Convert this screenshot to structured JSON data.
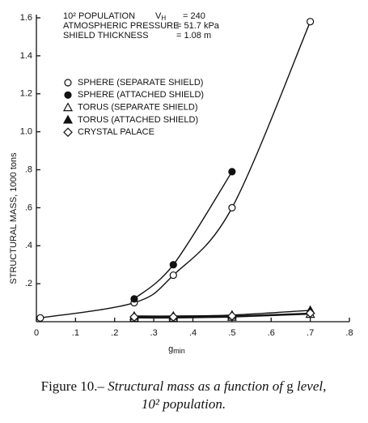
{
  "chart_data": {
    "type": "line",
    "x_label": {
      "text": "g",
      "sub": "min"
    },
    "y_label": "STRUCTURAL MASS, 1000 tons",
    "xlim": [
      0,
      0.8
    ],
    "ylim": [
      0,
      1.6
    ],
    "xticks": [
      0,
      {
        "value": 0.1,
        "label": ".1"
      },
      {
        "value": 0.2,
        "label": ".2"
      },
      {
        "value": 0.3,
        "label": ".3"
      },
      {
        "value": 0.4,
        "label": ".4"
      },
      {
        "value": 0.5,
        "label": ".5"
      },
      {
        "value": 0.6,
        "label": ".6"
      },
      {
        "value": 0.7,
        "label": ".7"
      },
      {
        "value": 0.8,
        "label": ".8"
      }
    ],
    "yticks": [
      {
        "value": 0.2,
        "label": ".2"
      },
      {
        "value": 0.4,
        "label": ".4"
      },
      {
        "value": 0.6,
        "label": ".6"
      },
      {
        "value": 0.8,
        "label": ".8"
      },
      {
        "value": 1.0,
        "label": "1.0"
      },
      1.2,
      1.4,
      1.6
    ],
    "annotations": [
      {
        "label": "10² POPULATION",
        "key": "V",
        "key_sub": "H",
        "value": "= 240"
      },
      {
        "label": "ATMOSPHERIC PRESSURE",
        "value": "= 51.7 kPa"
      },
      {
        "label": "SHIELD THICKNESS",
        "value": "= 1.08 m"
      }
    ],
    "series": [
      {
        "name": "SPHERE (SEPARATE SHIELD)",
        "marker": "circle-open",
        "color": "#111111",
        "x": [
          0.01,
          0.25,
          0.35,
          0.5,
          0.7
        ],
        "values": [
          0.02,
          0.1,
          0.245,
          0.6,
          1.58
        ]
      },
      {
        "name": "SPHERE (ATTACHED SHIELD)",
        "marker": "circle-filled",
        "color": "#111111",
        "x": [
          0.25,
          0.35,
          0.5
        ],
        "values": [
          0.12,
          0.3,
          0.79
        ]
      },
      {
        "name": "TORUS (SEPARATE SHIELD)",
        "marker": "triangle-open",
        "color": "#111111",
        "x": [
          0.25,
          0.35,
          0.5,
          0.7
        ],
        "values": [
          0.02,
          0.02,
          0.025,
          0.04
        ]
      },
      {
        "name": "TORUS (ATTACHED SHIELD)",
        "marker": "triangle-filled",
        "color": "#111111",
        "x": [
          0.25,
          0.35,
          0.5,
          0.7
        ],
        "values": [
          0.03,
          0.03,
          0.035,
          0.06
        ]
      },
      {
        "name": "CRYSTAL PALACE",
        "marker": "diamond-open",
        "color": "#111111",
        "x": [
          0.25,
          0.35,
          0.5,
          0.7
        ],
        "values": [
          0.025,
          0.025,
          0.03,
          0.045
        ]
      }
    ],
    "caption": [
      [
        {
          "text": "Figure 10.– ",
          "italic": false
        },
        {
          "text": "Structural mass as a function of ",
          "italic": true
        },
        {
          "text": "g",
          "italic": false
        },
        {
          "text": " level,",
          "italic": true
        }
      ],
      [
        {
          "text": "10² population.",
          "italic": true
        }
      ]
    ]
  }
}
